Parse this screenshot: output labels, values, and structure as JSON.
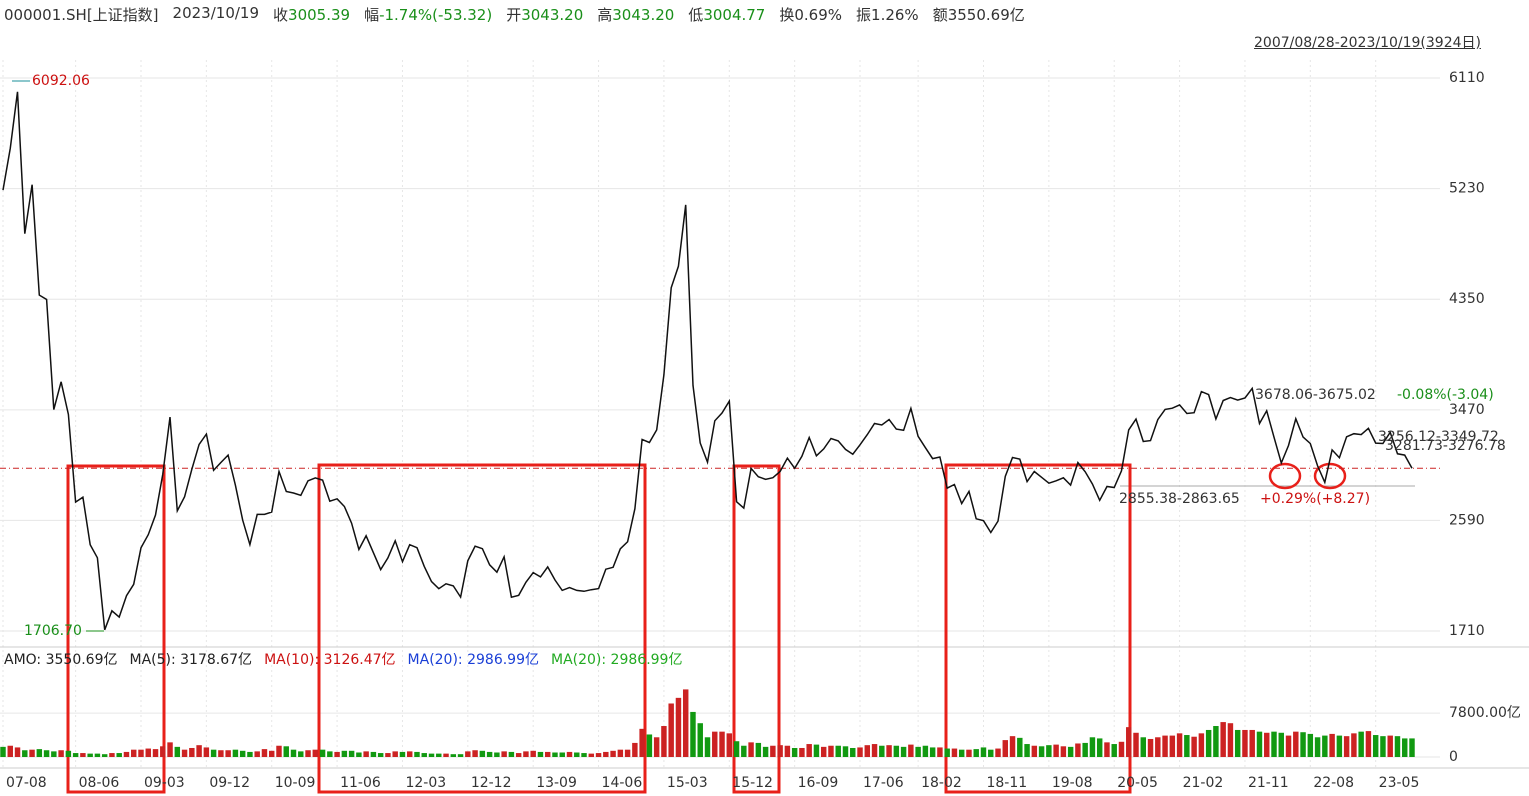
{
  "header": {
    "code": "000001.SH[上证指数]",
    "date": "2023/10/19",
    "items": [
      {
        "label": "收",
        "value": "3005.39",
        "color": "#1a8f1a"
      },
      {
        "label": "幅",
        "value": "-1.74%(-53.32)",
        "color": "#1a8f1a"
      },
      {
        "label": "开",
        "value": "3043.20",
        "color": "#1a8f1a"
      },
      {
        "label": "高",
        "value": "3043.20",
        "color": "#1a8f1a"
      },
      {
        "label": "低",
        "value": "3004.77",
        "color": "#1a8f1a"
      },
      {
        "label": "换",
        "value": "0.69%",
        "color": "#333"
      },
      {
        "label": "振",
        "value": "1.26%",
        "color": "#333"
      },
      {
        "label": "额",
        "value": "3550.69亿",
        "color": "#333"
      }
    ],
    "range": "2007/08/28-2023/10/19(3924日)"
  },
  "chart_data": [
    {
      "type": "line",
      "color": "#111111",
      "reference_line": 3005.39,
      "reference_color": "#cc2222",
      "ylim": [
        1599,
        6253
      ],
      "yticks": [
        6110,
        5230,
        4350,
        3470,
        2590,
        1710
      ],
      "grid": true,
      "categories": [
        "07-08",
        null,
        null,
        null,
        null,
        null,
        null,
        null,
        null,
        null,
        "08-06",
        null,
        null,
        null,
        null,
        null,
        null,
        null,
        null,
        "09-03",
        null,
        null,
        null,
        null,
        null,
        null,
        null,
        null,
        "09-12",
        null,
        null,
        null,
        null,
        null,
        null,
        null,
        null,
        "10-09",
        null,
        null,
        null,
        null,
        null,
        null,
        null,
        null,
        "11-06",
        null,
        null,
        null,
        null,
        null,
        null,
        null,
        null,
        "12-03",
        null,
        null,
        null,
        null,
        null,
        null,
        null,
        null,
        "12-12",
        null,
        null,
        null,
        null,
        null,
        null,
        null,
        null,
        "13-09",
        null,
        null,
        null,
        null,
        null,
        null,
        null,
        null,
        "14-06",
        null,
        null,
        null,
        null,
        null,
        null,
        null,
        null,
        "15-03",
        null,
        null,
        null,
        null,
        null,
        null,
        null,
        null,
        "15-12",
        null,
        null,
        null,
        null,
        null,
        null,
        null,
        null,
        "16-09",
        null,
        null,
        null,
        null,
        null,
        null,
        null,
        null,
        "17-06",
        null,
        null,
        null,
        null,
        null,
        null,
        null,
        "18-02",
        null,
        null,
        null,
        null,
        null,
        null,
        null,
        null,
        "18-11",
        null,
        null,
        null,
        null,
        null,
        null,
        null,
        null,
        "19-08",
        null,
        null,
        null,
        null,
        null,
        null,
        null,
        null,
        "20-05",
        null,
        null,
        null,
        null,
        null,
        null,
        null,
        null,
        "21-02",
        null,
        null,
        null,
        null,
        null,
        null,
        null,
        null,
        "21-11",
        null,
        null,
        null,
        null,
        null,
        null,
        null,
        null,
        "22-08",
        null,
        null,
        null,
        null,
        null,
        null,
        null,
        null,
        "23-05",
        null,
        null,
        null,
        null,
        null
      ],
      "values": [
        5218,
        5552,
        6000,
        4871,
        5261,
        4383,
        4348,
        3472,
        3693,
        3433,
        2736,
        2775,
        2397,
        2293,
        1720,
        1871,
        1821,
        1991,
        2082,
        2373,
        2477,
        2633,
        2959,
        3412,
        2667,
        2779,
        2996,
        3195,
        3277,
        2989,
        3051,
        3110,
        2870,
        2592,
        2398,
        2638,
        2638,
        2656,
        2979,
        2820,
        2808,
        2790,
        2905,
        2928,
        2911,
        2743,
        2762,
        2701,
        2568,
        2359,
        2468,
        2333,
        2199,
        2292,
        2428,
        2262,
        2397,
        2373,
        2225,
        2103,
        2047,
        2086,
        2069,
        1980,
        2269,
        2385,
        2365,
        2237,
        2178,
        2301,
        1979,
        1994,
        2098,
        2175,
        2141,
        2220,
        2116,
        2033,
        2056,
        2033,
        2026,
        2039,
        2048,
        2202,
        2217,
        2364,
        2420,
        2683,
        3235,
        3210,
        3310,
        3748,
        4441,
        4612,
        5100,
        3664,
        3206,
        3053,
        3383,
        3445,
        3539,
        2738,
        2688,
        3004,
        2938,
        2917,
        2930,
        2979,
        3085,
        3005,
        3100,
        3250,
        3104,
        3159,
        3242,
        3223,
        3155,
        3117,
        3192,
        3273,
        3361,
        3349,
        3393,
        3317,
        3307,
        3481,
        3259,
        3169,
        3082,
        3095,
        2847,
        2876,
        2725,
        2821,
        2603,
        2588,
        2494,
        2585,
        2941,
        3091,
        3078,
        2899,
        2979,
        2933,
        2886,
        2905,
        2929,
        2871,
        3050,
        2977,
        2880,
        2750,
        2860,
        2852,
        2985,
        3310,
        3396,
        3218,
        3225,
        3392,
        3473,
        3483,
        3509,
        3441,
        3447,
        3615,
        3591,
        3397,
        3544,
        3568,
        3547,
        3564,
        3640,
        3361,
        3462,
        3252,
        3047,
        3186,
        3399,
        3253,
        3202,
        3024,
        2893,
        3151,
        3089,
        3255,
        3280,
        3273,
        3323,
        3205,
        3202,
        3291,
        3120,
        3110,
        3005
      ],
      "annotations": [
        {
          "text": "6092.06",
          "color": "#cc1111"
        },
        {
          "text": "1706.70",
          "color": "#1a8f1a"
        },
        {
          "text": "3678.06-3675.02",
          "color": "#333333"
        },
        {
          "text": "-0.08%(-3.04)",
          "color": "#1a8f1a"
        },
        {
          "text": "2855.38-2863.65",
          "color": "#333333"
        },
        {
          "text": "+0.29%(+8.27)",
          "color": "#cc1111"
        },
        {
          "text": "3256.12-3349.72",
          "color": "#333333"
        },
        {
          "text": "3281.73-3276.78",
          "color": "#333333"
        }
      ]
    },
    {
      "type": "bar",
      "up_color": "#cc2222",
      "down_color": "#119911",
      "legend": [
        {
          "text": "AMO: 3550.69亿",
          "color": "#222222"
        },
        {
          "text": "MA(5): 3178.67亿",
          "color": "#222222"
        },
        {
          "text": "MA(10): 3126.47亿",
          "color": "#cc1111"
        },
        {
          "text": "MA(20): 2986.99亿",
          "color": "#1a3fd6"
        },
        {
          "text": "MA(20): 2986.99亿",
          "color": "#22aa22"
        }
      ],
      "ylim": [
        0,
        15800
      ],
      "yticks": [
        {
          "value": 7800,
          "label": "7800.00亿"
        },
        0
      ],
      "values": [
        1800,
        2000,
        1700,
        1200,
        1300,
        1400,
        1200,
        1000,
        1200,
        1100,
        700,
        700,
        600,
        600,
        500,
        700,
        700,
        900,
        1300,
        1300,
        1500,
        1400,
        1900,
        2600,
        1800,
        1300,
        1600,
        2100,
        1700,
        1300,
        1200,
        1200,
        1300,
        1100,
        900,
        1000,
        1400,
        1100,
        2000,
        1900,
        1300,
        1000,
        1200,
        1300,
        1300,
        1000,
        900,
        1100,
        1100,
        800,
        1000,
        900,
        700,
        700,
        1000,
        900,
        1000,
        900,
        700,
        600,
        600,
        600,
        500,
        500,
        1000,
        1200,
        1100,
        900,
        800,
        1000,
        900,
        700,
        1000,
        1100,
        900,
        900,
        800,
        800,
        900,
        800,
        700,
        600,
        700,
        900,
        1100,
        1300,
        1300,
        2500,
        5000,
        4000,
        3500,
        5500,
        9500,
        10500,
        12000,
        8000,
        6000,
        3500,
        4500,
        4500,
        4200,
        2800,
        2000,
        2600,
        2500,
        1800,
        2000,
        2100,
        2000,
        1600,
        1600,
        2300,
        2200,
        1800,
        2000,
        2000,
        1900,
        1600,
        1700,
        2100,
        2300,
        2000,
        2100,
        2000,
        1800,
        2200,
        1800,
        2000,
        1700,
        1700,
        1500,
        1500,
        1300,
        1300,
        1400,
        1700,
        1300,
        1500,
        3000,
        3700,
        3400,
        2300,
        2000,
        1900,
        2100,
        2200,
        1900,
        1800,
        2400,
        2500,
        3500,
        3300,
        2600,
        2300,
        2700,
        5300,
        4300,
        3500,
        3200,
        3500,
        3800,
        3800,
        4200,
        3900,
        3600,
        4200,
        4800,
        5500,
        6200,
        6000,
        4800,
        4800,
        4800,
        4500,
        4300,
        4500,
        4300,
        3800,
        4500,
        4400,
        4100,
        3500,
        3800,
        4100,
        3800,
        3700,
        4200,
        4500,
        4600,
        3900,
        3700,
        3800,
        3700,
        3300,
        3300
      ]
    }
  ]
}
